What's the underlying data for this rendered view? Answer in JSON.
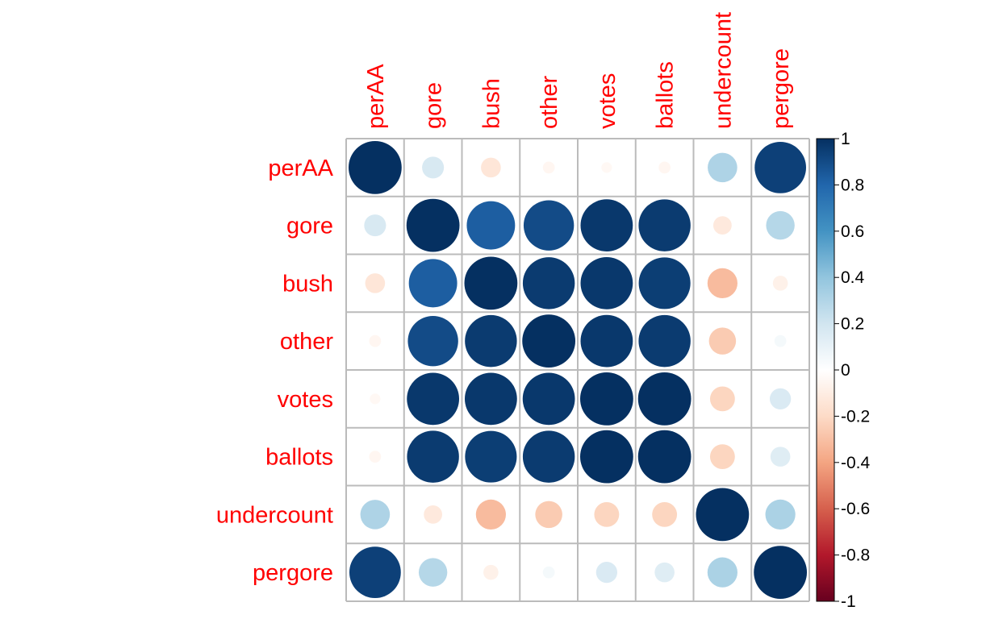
{
  "chart_data": {
    "type": "heatmap",
    "variables": [
      "perAA",
      "gore",
      "bush",
      "other",
      "votes",
      "ballots",
      "undercount",
      "pergore"
    ],
    "matrix": [
      [
        1.0,
        0.17,
        -0.14,
        -0.05,
        -0.04,
        -0.05,
        0.31,
        0.94
      ],
      [
        0.17,
        1.0,
        0.83,
        0.9,
        0.97,
        0.96,
        -0.12,
        0.29
      ],
      [
        -0.14,
        0.83,
        1.0,
        0.96,
        0.97,
        0.95,
        -0.32,
        -0.08
      ],
      [
        -0.05,
        0.9,
        0.96,
        1.0,
        0.97,
        0.96,
        -0.26,
        0.05
      ],
      [
        -0.04,
        0.97,
        0.97,
        0.97,
        1.0,
        1.0,
        -0.22,
        0.16
      ],
      [
        -0.05,
        0.96,
        0.95,
        0.96,
        1.0,
        1.0,
        -0.22,
        0.14
      ],
      [
        0.31,
        -0.12,
        -0.32,
        -0.26,
        -0.22,
        -0.22,
        1.0,
        0.32
      ],
      [
        0.94,
        0.29,
        -0.08,
        0.05,
        0.16,
        0.14,
        0.32,
        1.0
      ]
    ],
    "color_scale": {
      "min": -1,
      "max": 1,
      "ticks": [
        "1",
        "0.8",
        "0.6",
        "0.4",
        "0.2",
        "0",
        "-0.2",
        "-0.4",
        "-0.6",
        "-0.8",
        "-1"
      ],
      "colors": [
        "#67001F",
        "#B2182B",
        "#D6604D",
        "#F4A582",
        "#FDDBC7",
        "#FFFFFF",
        "#D1E5F0",
        "#92C5DE",
        "#4393C3",
        "#2166AC",
        "#053061"
      ]
    },
    "label_color": "#ff0000",
    "grid_color": "#bbbbbb"
  }
}
